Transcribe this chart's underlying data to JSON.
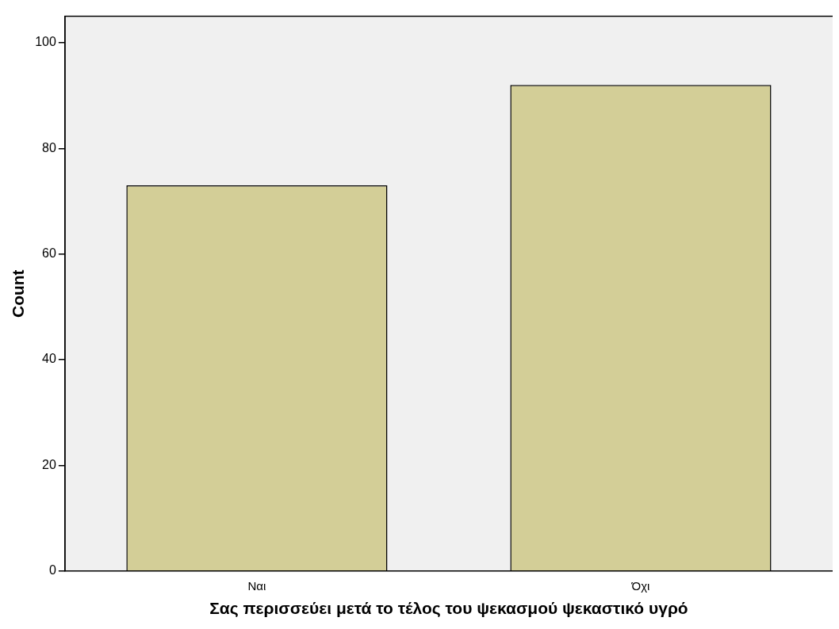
{
  "chart_data": {
    "type": "bar",
    "xlabel": "Σας περισσεύει μετά το τέλος του ψεκασμού ψεκαστικό υγρό",
    "ylabel": "Count",
    "categories": [
      "Ναι",
      "Όχι"
    ],
    "values": [
      73,
      92
    ],
    "color": "#d3ce97",
    "ylim": [
      0,
      105
    ],
    "yticks": [
      0,
      20,
      40,
      60,
      80,
      100
    ],
    "grid": false,
    "legend": false
  }
}
